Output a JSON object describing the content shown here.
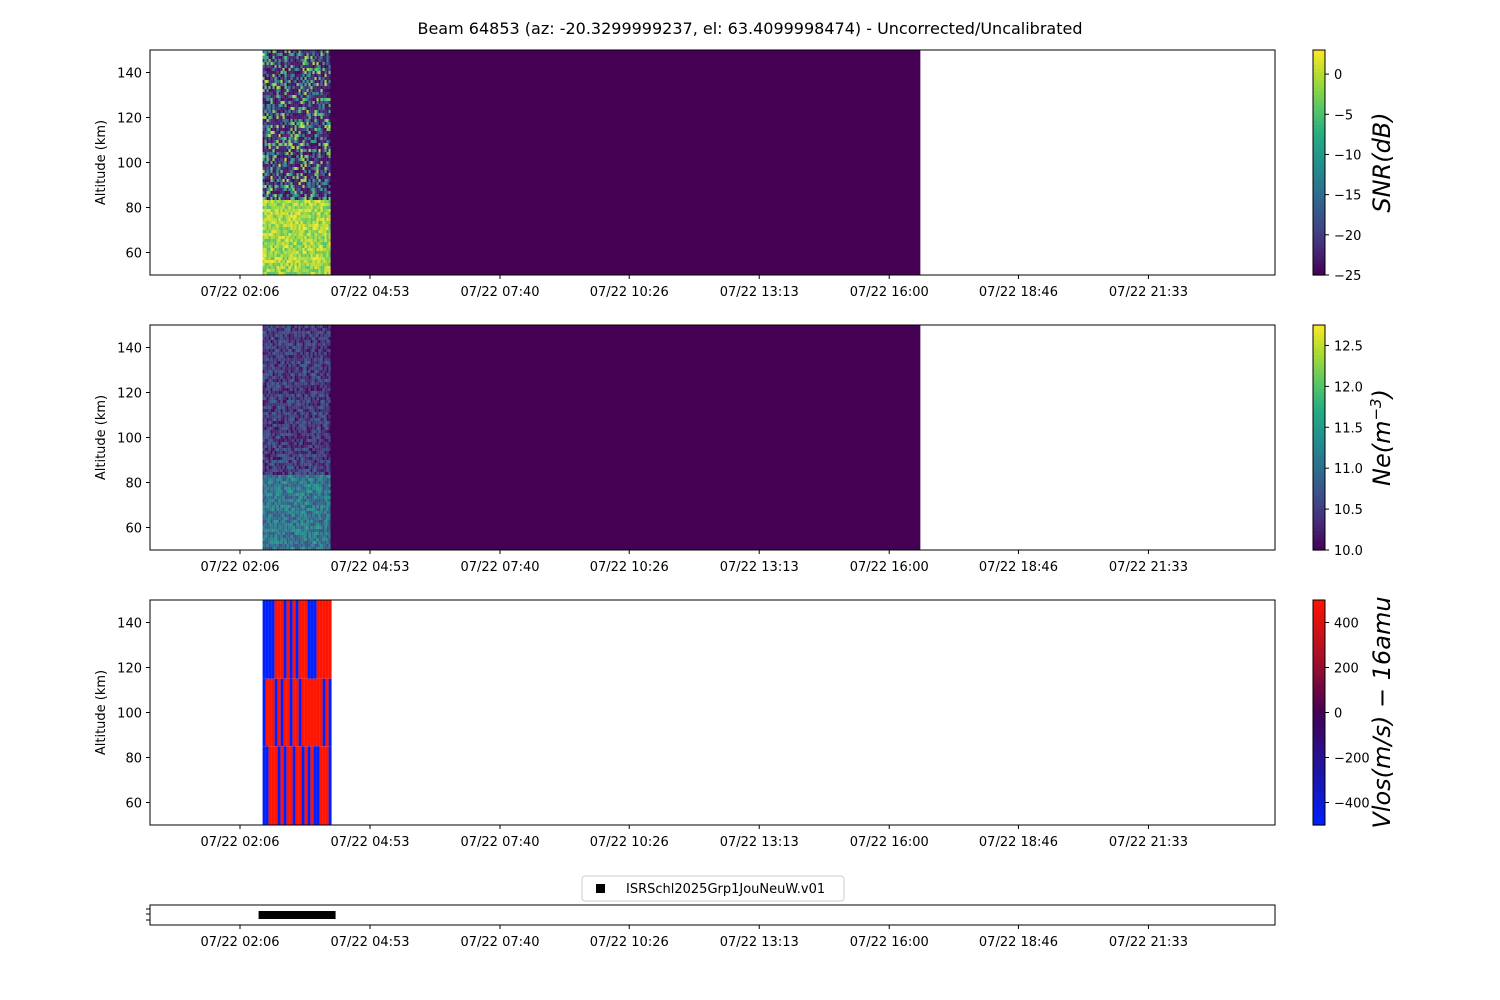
{
  "figure": {
    "title": "Beam 64853 (az: -20.3299999237, el: 63.4099998474) - Uncorrected/Uncalibrated"
  },
  "time_axis": {
    "tick_labels": [
      "07/22 02:06",
      "07/22 04:53",
      "07/22 07:40",
      "07/22 10:26",
      "07/22 13:13",
      "07/22 16:00",
      "07/22 18:46",
      "07/22 21:33"
    ]
  },
  "chart_data": [
    {
      "id": "snr",
      "type": "heatmap",
      "title": "",
      "ylabel": "Altitude (km)",
      "ylim": [
        50,
        150
      ],
      "y_ticks": [
        60,
        80,
        100,
        120,
        140
      ],
      "colorbar_label": "SNR(dB)",
      "colormap": "viridis",
      "clim": [
        -25,
        3
      ],
      "colorbar_ticks": [
        0,
        -5,
        -10,
        -15,
        -20,
        -25
      ],
      "colorbar_tick_labels": [
        "0",
        "−5",
        "−10",
        "−15",
        "−20",
        "−25"
      ],
      "x_ticks": [
        "07/22 02:06",
        "07/22 04:53",
        "07/22 07:40",
        "07/22 10:26",
        "07/22 13:13",
        "07/22 16:00",
        "07/22 18:46",
        "07/22 21:33"
      ],
      "data_time_range": [
        "07/22 02:35",
        "07/22 04:00"
      ],
      "fill_time_range": [
        "07/22 04:00",
        "07/22 16:40"
      ],
      "fill_value": -25,
      "regions": [
        {
          "altitude_range": [
            83,
            150
          ],
          "value_range": [
            -25,
            -5
          ],
          "note": "noisy"
        },
        {
          "altitude_range": [
            50,
            83
          ],
          "value_range": [
            -5,
            3
          ]
        }
      ]
    },
    {
      "id": "ne",
      "type": "heatmap",
      "title": "",
      "ylabel": "Altitude (km)",
      "ylim": [
        50,
        150
      ],
      "y_ticks": [
        60,
        80,
        100,
        120,
        140
      ],
      "colorbar_label": "Ne(m^-3)",
      "colormap": "viridis",
      "clim": [
        10.0,
        12.75
      ],
      "colorbar_ticks": [
        12.5,
        12.0,
        11.5,
        11.0,
        10.5,
        10.0
      ],
      "colorbar_tick_labels": [
        "12.5",
        "12.0",
        "11.5",
        "11.0",
        "10.5",
        "10.0"
      ],
      "x_ticks": [
        "07/22 02:06",
        "07/22 04:53",
        "07/22 07:40",
        "07/22 10:26",
        "07/22 13:13",
        "07/22 16:00",
        "07/22 18:46",
        "07/22 21:33"
      ],
      "data_time_range": [
        "07/22 02:35",
        "07/22 04:00"
      ],
      "fill_time_range": [
        "07/22 04:00",
        "07/22 16:40"
      ],
      "fill_value": 10.0,
      "regions": [
        {
          "altitude_range": [
            83,
            150
          ],
          "value_range": [
            10.0,
            10.9
          ]
        },
        {
          "altitude_range": [
            50,
            83
          ],
          "value_range": [
            10.6,
            11.6
          ]
        }
      ]
    },
    {
      "id": "vlos",
      "type": "heatmap",
      "title": "",
      "ylabel": "Altitude (km)",
      "ylim": [
        50,
        150
      ],
      "y_ticks": [
        60,
        80,
        100,
        120,
        140
      ],
      "colorbar_label": "Vlos(m/s) − 16amu",
      "colormap": "blue-red",
      "clim": [
        -500,
        500
      ],
      "colorbar_ticks": [
        400,
        200,
        0,
        -200,
        -400
      ],
      "colorbar_tick_labels": [
        "400",
        "200",
        "0",
        "−200",
        "−400"
      ],
      "x_ticks": [
        "07/22 02:06",
        "07/22 04:53",
        "07/22 07:40",
        "07/22 10:26",
        "07/22 13:13",
        "07/22 16:00",
        "07/22 18:46",
        "07/22 21:33"
      ],
      "data_time_range": [
        "07/22 02:35",
        "07/22 04:00"
      ],
      "values": [
        -500,
        500
      ],
      "regions": [
        {
          "altitude_range": [
            115,
            150
          ],
          "dominant": 500
        },
        {
          "altitude_range": [
            85,
            115
          ],
          "dominant": 500
        },
        {
          "altitude_range": [
            50,
            85
          ],
          "dominant": -500
        }
      ]
    },
    {
      "id": "experiment",
      "type": "scatter",
      "x_ticks": [
        "07/22 02:06",
        "07/22 04:53",
        "07/22 07:40",
        "07/22 10:26",
        "07/22 13:13",
        "07/22 16:00",
        "07/22 18:46",
        "07/22 21:33"
      ],
      "legend": [
        "ISRSchl2025Grp1JouNeuW.v01"
      ],
      "legend_position": "top-center",
      "series": [
        {
          "name": "ISRSchl2025Grp1JouNeuW.v01",
          "time_range": [
            "07/22 02:35",
            "07/22 04:05"
          ],
          "marker": "square",
          "color": "#000000"
        }
      ]
    }
  ]
}
